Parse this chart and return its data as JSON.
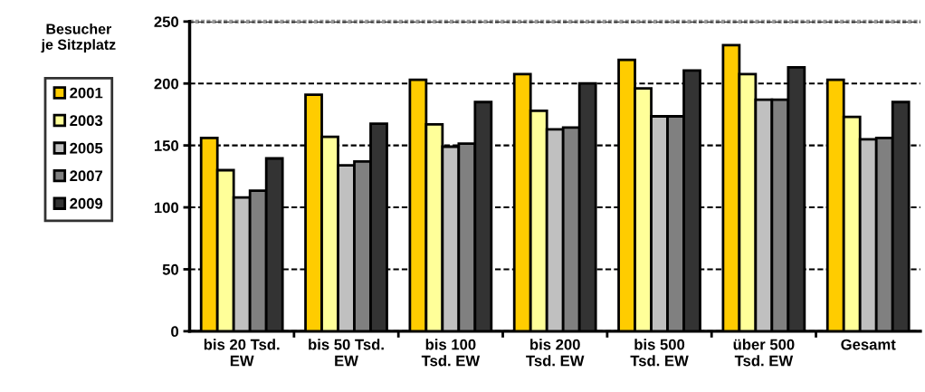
{
  "chart_data": {
    "type": "bar",
    "ylabel": "Besucher\nje Sitzplatz",
    "categories": [
      "bis 20 Tsd.\nEW",
      "bis 50 Tsd.\nEW",
      "bis 100\nTsd. EW",
      "bis 200\nTsd. EW",
      "bis 500\nTsd. EW",
      "über 500\nTsd. EW",
      "Gesamt"
    ],
    "series": [
      {
        "name": "2001",
        "color": "#ffcc00",
        "values": [
          156,
          191,
          203,
          207.5,
          219,
          231,
          203
        ]
      },
      {
        "name": "2003",
        "color": "#ffff99",
        "values": [
          130,
          157,
          167,
          178,
          196,
          207.5,
          173
        ]
      },
      {
        "name": "2005",
        "color": "#c0c0c0",
        "values": [
          108,
          134,
          149,
          163,
          173.5,
          187,
          155
        ]
      },
      {
        "name": "2007",
        "color": "#808080",
        "values": [
          113.5,
          137,
          151.5,
          164.5,
          173.5,
          187,
          156
        ]
      },
      {
        "name": "2009",
        "color": "#333333",
        "values": [
          139.5,
          167.5,
          185,
          200,
          210.5,
          213,
          185
        ]
      }
    ],
    "ylim": [
      0,
      250
    ],
    "yticks": [
      0,
      50,
      100,
      150,
      200,
      250
    ],
    "grid": "y",
    "legend": "left"
  }
}
